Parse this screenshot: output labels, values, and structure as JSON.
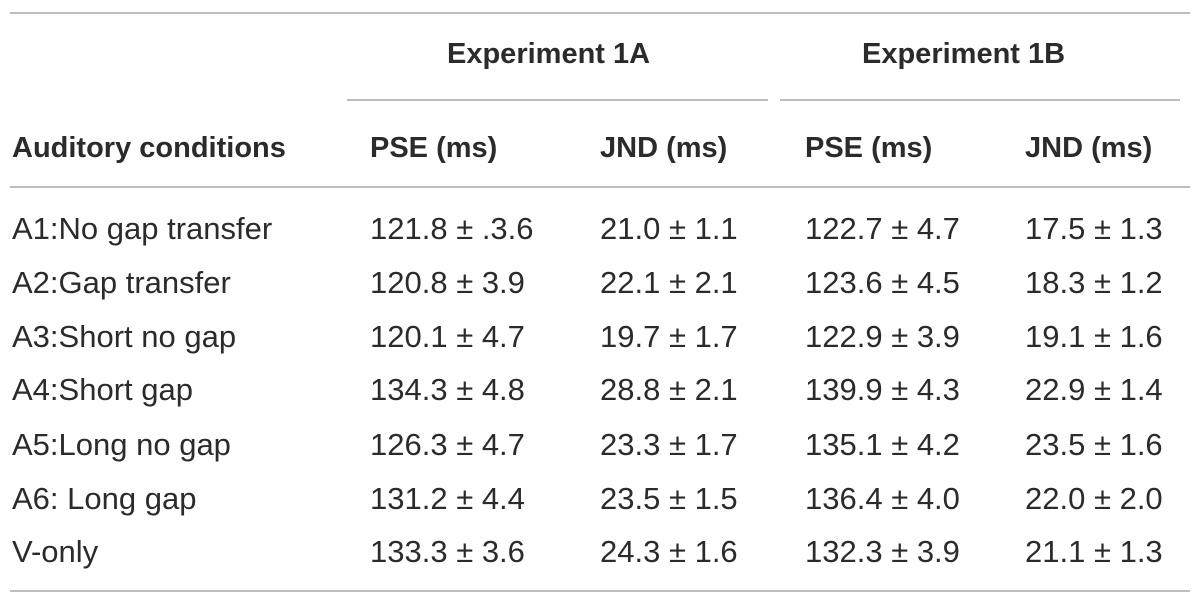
{
  "table": {
    "group_headers": [
      "Experiment 1A",
      "Experiment 1B"
    ],
    "column_headers": [
      "Auditory conditions",
      "PSE (ms)",
      "JND (ms)",
      "PSE (ms)",
      "JND (ms)"
    ],
    "rows": [
      [
        "A1:No gap transfer",
        "121.8 ± .3.6",
        "21.0 ± 1.1",
        "122.7 ± 4.7",
        "17.5 ± 1.3"
      ],
      [
        "A2:Gap transfer",
        "120.8 ± 3.9",
        "22.1 ± 2.1",
        "123.6 ± 4.5",
        "18.3 ± 1.2"
      ],
      [
        "A3:Short no gap",
        "120.1 ± 4.7",
        "19.7 ± 1.7",
        "122.9 ± 3.9",
        "19.1 ± 1.6"
      ],
      [
        "A4:Short gap",
        "134.3 ± 4.8",
        "28.8 ± 2.1",
        "139.9 ± 4.3",
        "22.9 ± 1.4"
      ],
      [
        "A5:Long no gap",
        "126.3 ± 4.7",
        "23.3 ± 1.7",
        "135.1 ± 4.2",
        "23.5 ± 1.6"
      ],
      [
        "A6: Long gap",
        "131.2 ± 4.4",
        "23.5 ± 1.5",
        "136.4 ± 4.0",
        "22.0 ± 2.0"
      ],
      [
        "V-only",
        "133.3 ± 3.6",
        "24.3 ± 1.6",
        "132.3 ± 3.9",
        "21.1 ± 1.3"
      ]
    ]
  }
}
